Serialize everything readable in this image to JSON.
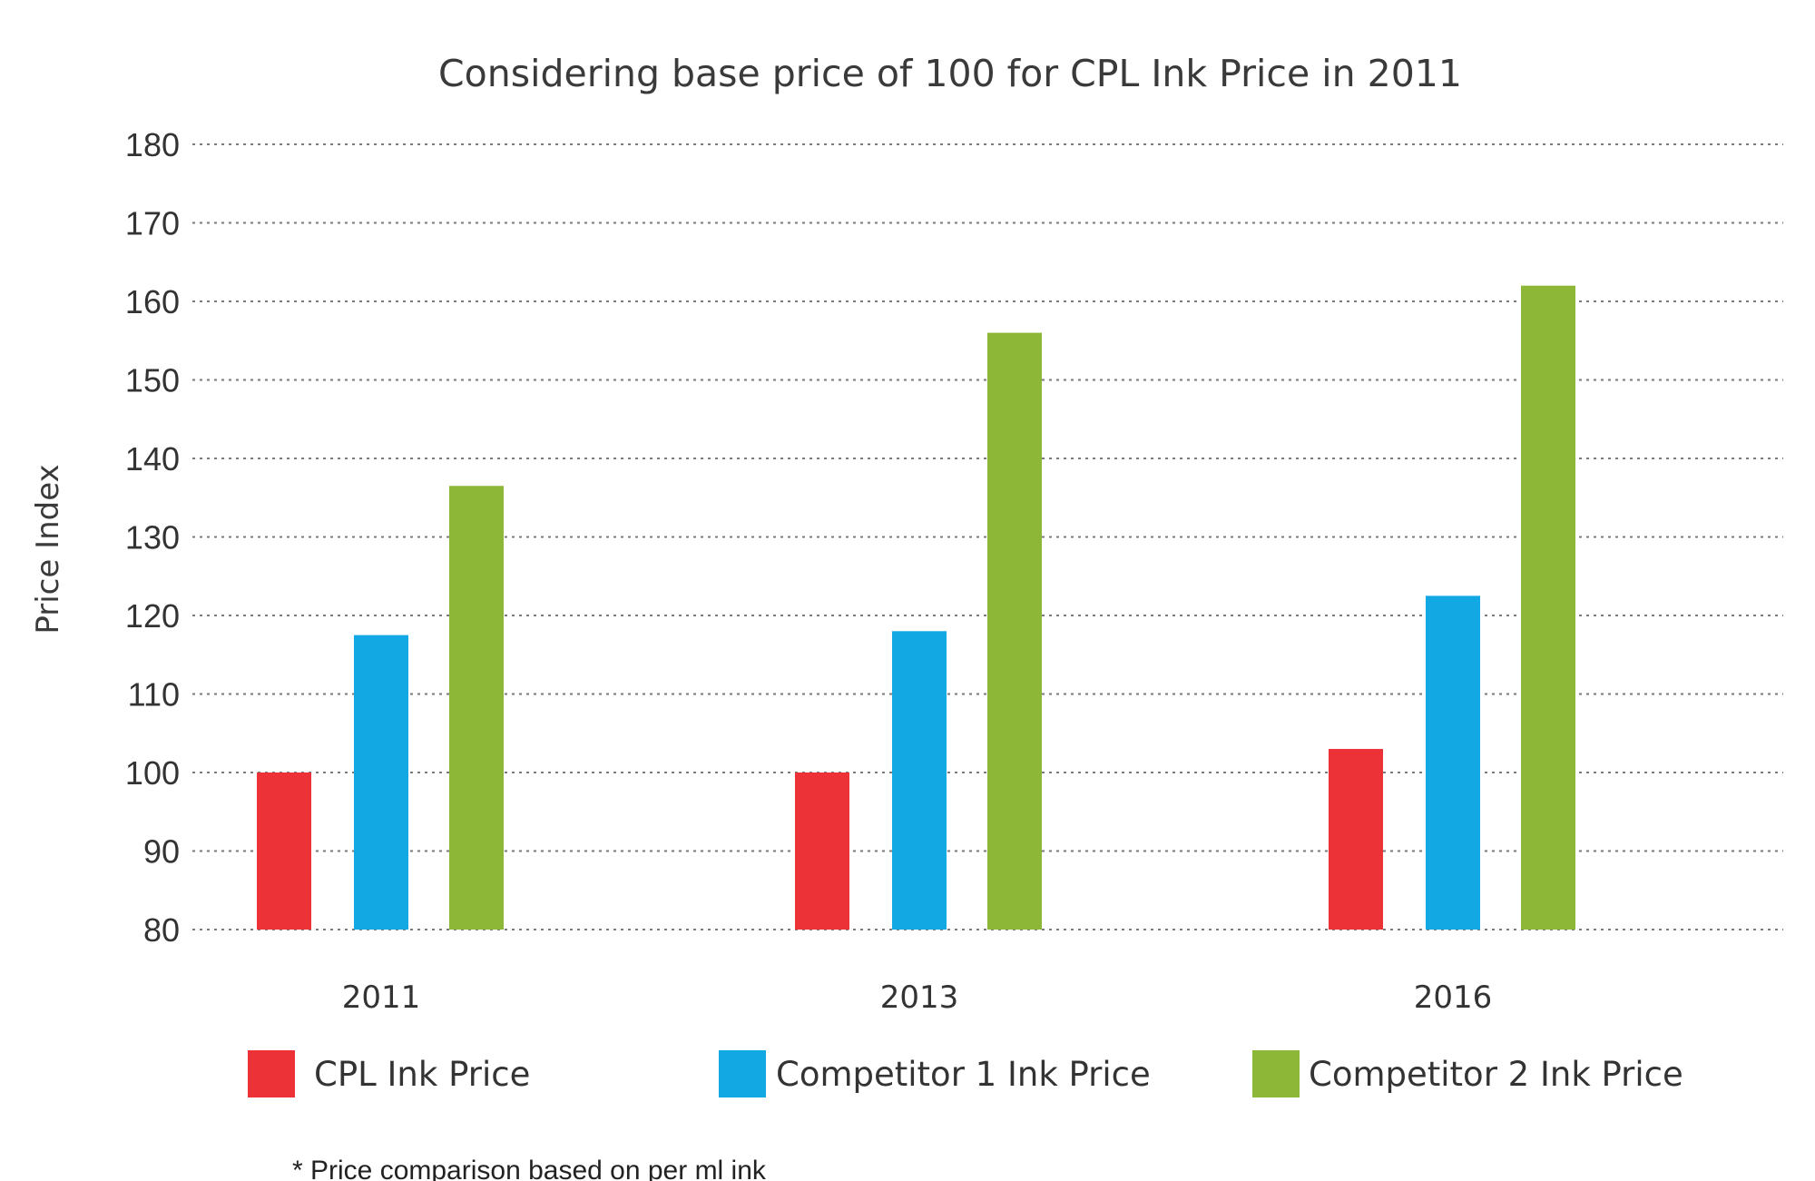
{
  "chart_data": {
    "type": "bar",
    "title": "Considering base price of 100 for CPL Ink Price in 2011",
    "xlabel": "",
    "ylabel": "Price Index",
    "ylim": [
      80,
      180
    ],
    "yticks": [
      "80",
      "90",
      "100",
      "110",
      "120",
      "130",
      "140",
      "150",
      "160",
      "170",
      "180"
    ],
    "categories": [
      "2011",
      "2013",
      "2016"
    ],
    "grid": true,
    "legend_position": "bottom",
    "series": [
      {
        "name": "CPL Ink Price",
        "color": "#ec3237",
        "values": [
          100,
          100,
          103
        ]
      },
      {
        "name": "Competitor 1 Ink Price",
        "color": "#12a8e3",
        "values": [
          117.5,
          118,
          122.5
        ]
      },
      {
        "name": "Competitor 2 Ink Price",
        "color": "#8db737",
        "values": [
          136.5,
          156,
          162
        ]
      }
    ],
    "footnote": "* Price comparison based on per ml ink"
  }
}
